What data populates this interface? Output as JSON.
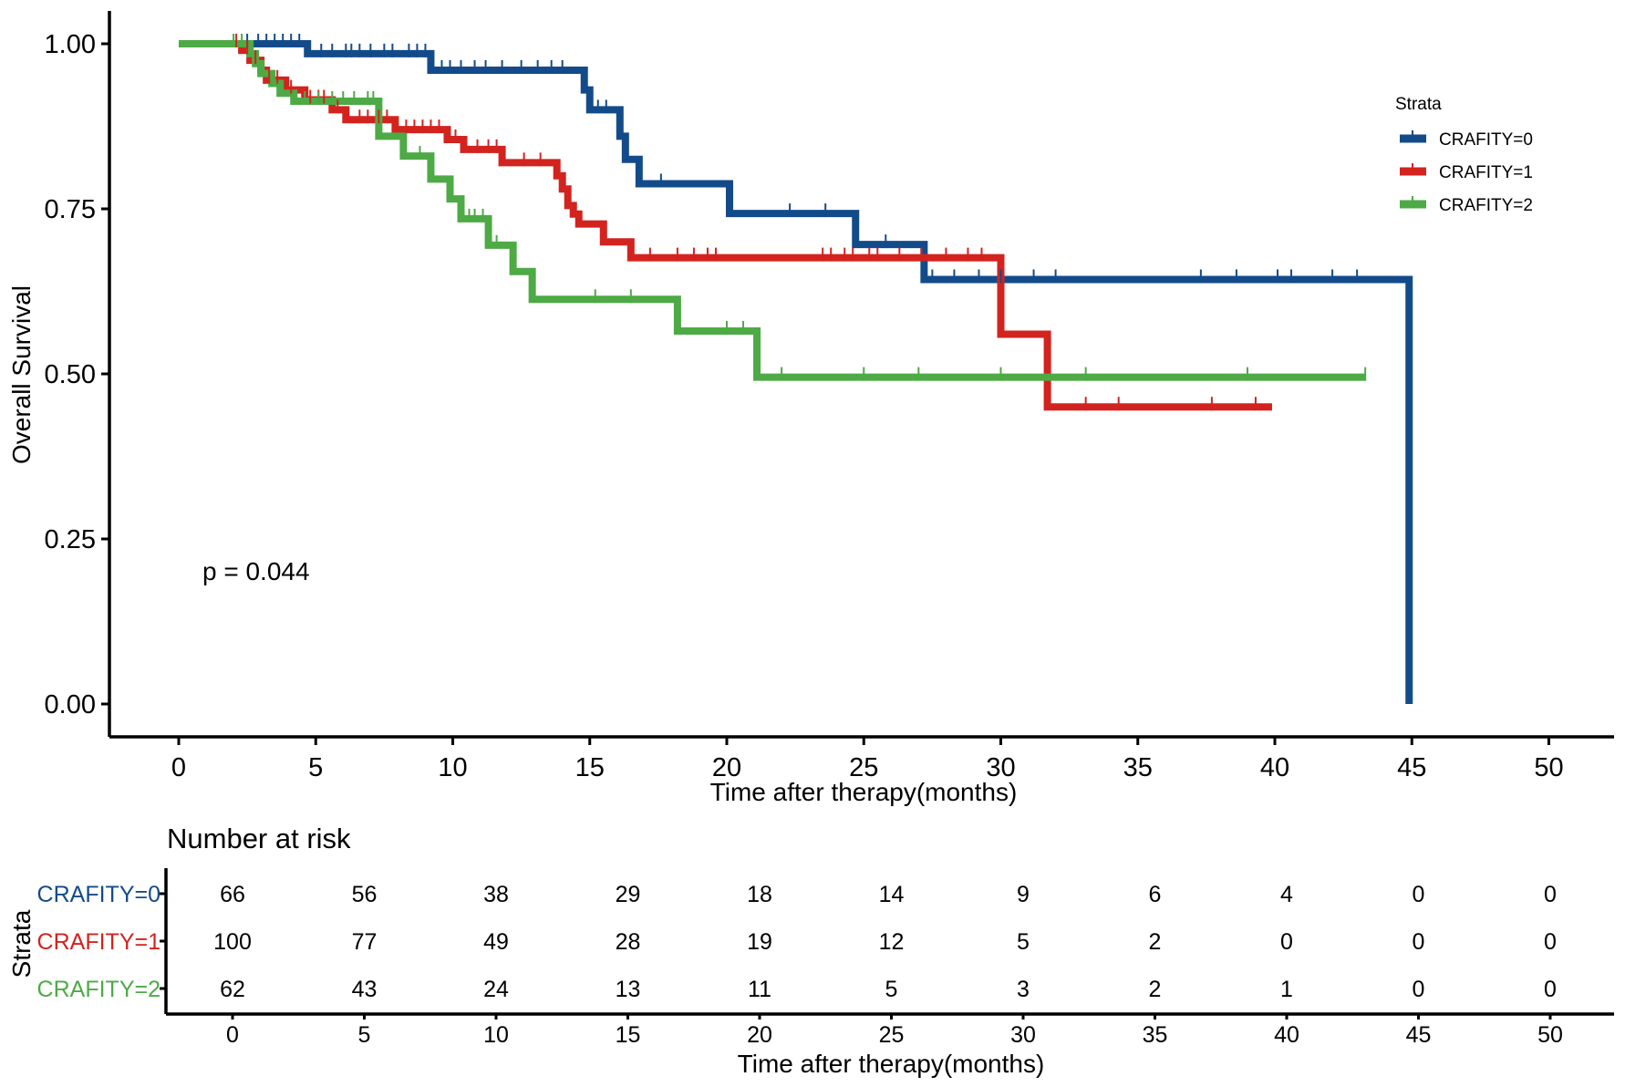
{
  "chart_data": {
    "type": "line",
    "subtype": "kaplan-meier",
    "xlabel": "Time after therapy(months)",
    "ylabel": "Overall Survival",
    "xlim": [
      -2.5,
      52.5
    ],
    "ylim": [
      -0.05,
      1.05
    ],
    "x_ticks": [
      0,
      5,
      10,
      15,
      20,
      25,
      30,
      35,
      40,
      45,
      50
    ],
    "y_ticks": [
      0.0,
      0.25,
      0.5,
      0.75,
      1.0
    ],
    "y_tick_labels": [
      "0.00",
      "0.25",
      "0.50",
      "0.75",
      "1.00"
    ],
    "grid": false,
    "p_value_text": "p = 0.044",
    "legend": {
      "title": "Strata",
      "position": "top-right",
      "entries": [
        "CRAFITY=0",
        "CRAFITY=1",
        "CRAFITY=2"
      ]
    },
    "series": [
      {
        "name": "CRAFITY=0",
        "color": "#134B8A",
        "steps": [
          [
            0,
            1.0
          ],
          [
            4.7,
            0.985
          ],
          [
            9.2,
            0.96
          ],
          [
            14.8,
            0.93
          ],
          [
            15.0,
            0.9
          ],
          [
            16.1,
            0.86
          ],
          [
            16.3,
            0.825
          ],
          [
            16.8,
            0.788
          ],
          [
            20.1,
            0.743
          ],
          [
            24.7,
            0.696
          ],
          [
            27.2,
            0.643
          ],
          [
            44.9,
            0.0
          ]
        ],
        "end_time": 44.9,
        "censor_times": [
          2.5,
          2.9,
          3.2,
          3.5,
          3.8,
          4.1,
          4.4,
          5.2,
          5.6,
          6.1,
          6.3,
          6.6,
          7.0,
          7.5,
          7.8,
          8.4,
          8.7,
          9.0,
          9.6,
          9.9,
          10.3,
          10.8,
          11.2,
          11.8,
          12.5,
          13.1,
          13.6,
          14.0,
          15.3,
          15.6,
          17.6,
          22.3,
          23.6,
          25.8,
          27.5,
          28.3,
          29.2,
          30.0,
          31.2,
          32.0,
          37.3,
          38.6,
          40.1,
          40.6,
          42.1,
          43.0
        ]
      },
      {
        "name": "CRAFITY=1",
        "color": "#D3231E",
        "steps": [
          [
            0,
            1.0
          ],
          [
            2.3,
            0.99
          ],
          [
            2.6,
            0.975
          ],
          [
            3.0,
            0.96
          ],
          [
            3.2,
            0.945
          ],
          [
            3.9,
            0.93
          ],
          [
            4.6,
            0.915
          ],
          [
            5.6,
            0.9
          ],
          [
            6.1,
            0.885
          ],
          [
            7.9,
            0.87
          ],
          [
            9.8,
            0.855
          ],
          [
            10.4,
            0.84
          ],
          [
            11.8,
            0.82
          ],
          [
            13.8,
            0.8
          ],
          [
            14.0,
            0.78
          ],
          [
            14.2,
            0.755
          ],
          [
            14.4,
            0.742
          ],
          [
            14.6,
            0.727
          ],
          [
            15.5,
            0.7
          ],
          [
            16.5,
            0.676
          ],
          [
            30.0,
            0.56
          ],
          [
            31.7,
            0.45
          ]
        ],
        "end_time": 39.9,
        "censor_times": [
          2.1,
          2.5,
          2.8,
          3.3,
          3.6,
          4.1,
          4.8,
          5.1,
          5.3,
          5.8,
          6.6,
          6.9,
          7.3,
          7.6,
          8.3,
          8.6,
          8.9,
          9.2,
          9.5,
          10.1,
          10.9,
          11.3,
          11.6,
          12.6,
          13.2,
          17.2,
          18.2,
          18.8,
          19.3,
          19.6,
          23.5,
          23.8,
          24.3,
          24.6,
          25.2,
          25.5,
          26.3,
          27.1,
          28.0,
          28.8,
          29.3,
          33.1,
          34.3,
          37.7,
          39.3
        ]
      },
      {
        "name": "CRAFITY=2",
        "color": "#4DAA45",
        "steps": [
          [
            0,
            1.0
          ],
          [
            2.6,
            0.985
          ],
          [
            2.8,
            0.97
          ],
          [
            3.0,
            0.955
          ],
          [
            3.4,
            0.94
          ],
          [
            3.7,
            0.925
          ],
          [
            4.2,
            0.913
          ],
          [
            7.3,
            0.86
          ],
          [
            8.2,
            0.83
          ],
          [
            9.2,
            0.795
          ],
          [
            9.9,
            0.765
          ],
          [
            10.3,
            0.735
          ],
          [
            11.3,
            0.695
          ],
          [
            12.2,
            0.655
          ],
          [
            12.9,
            0.613
          ],
          [
            18.2,
            0.565
          ],
          [
            21.1,
            0.495
          ]
        ],
        "end_time": 43.3,
        "censor_times": [
          2.0,
          2.3,
          3.1,
          4.6,
          5.1,
          5.6,
          6.0,
          6.4,
          6.9,
          7.1,
          8.8,
          10.6,
          10.8,
          11.1,
          11.6,
          15.2,
          16.5,
          20.0,
          20.6,
          22.0,
          25.0,
          27.0,
          30.0,
          33.1,
          39.0,
          43.3
        ]
      }
    ]
  },
  "risk_table": {
    "title": "Number at risk",
    "ylabel": "Strata",
    "xlabel": "Time after therapy(months)",
    "times": [
      0,
      5,
      10,
      15,
      20,
      25,
      30,
      35,
      40,
      45,
      50
    ],
    "rows": [
      {
        "strata": "CRAFITY=0",
        "color": "#134B8A",
        "values": [
          66,
          56,
          38,
          29,
          18,
          14,
          9,
          6,
          4,
          0,
          0
        ]
      },
      {
        "strata": "CRAFITY=1",
        "color": "#D3231E",
        "values": [
          100,
          77,
          49,
          28,
          19,
          12,
          5,
          2,
          0,
          0,
          0
        ]
      },
      {
        "strata": "CRAFITY=2",
        "color": "#4DAA45",
        "values": [
          62,
          43,
          24,
          13,
          11,
          5,
          3,
          2,
          1,
          0,
          0
        ]
      }
    ]
  }
}
